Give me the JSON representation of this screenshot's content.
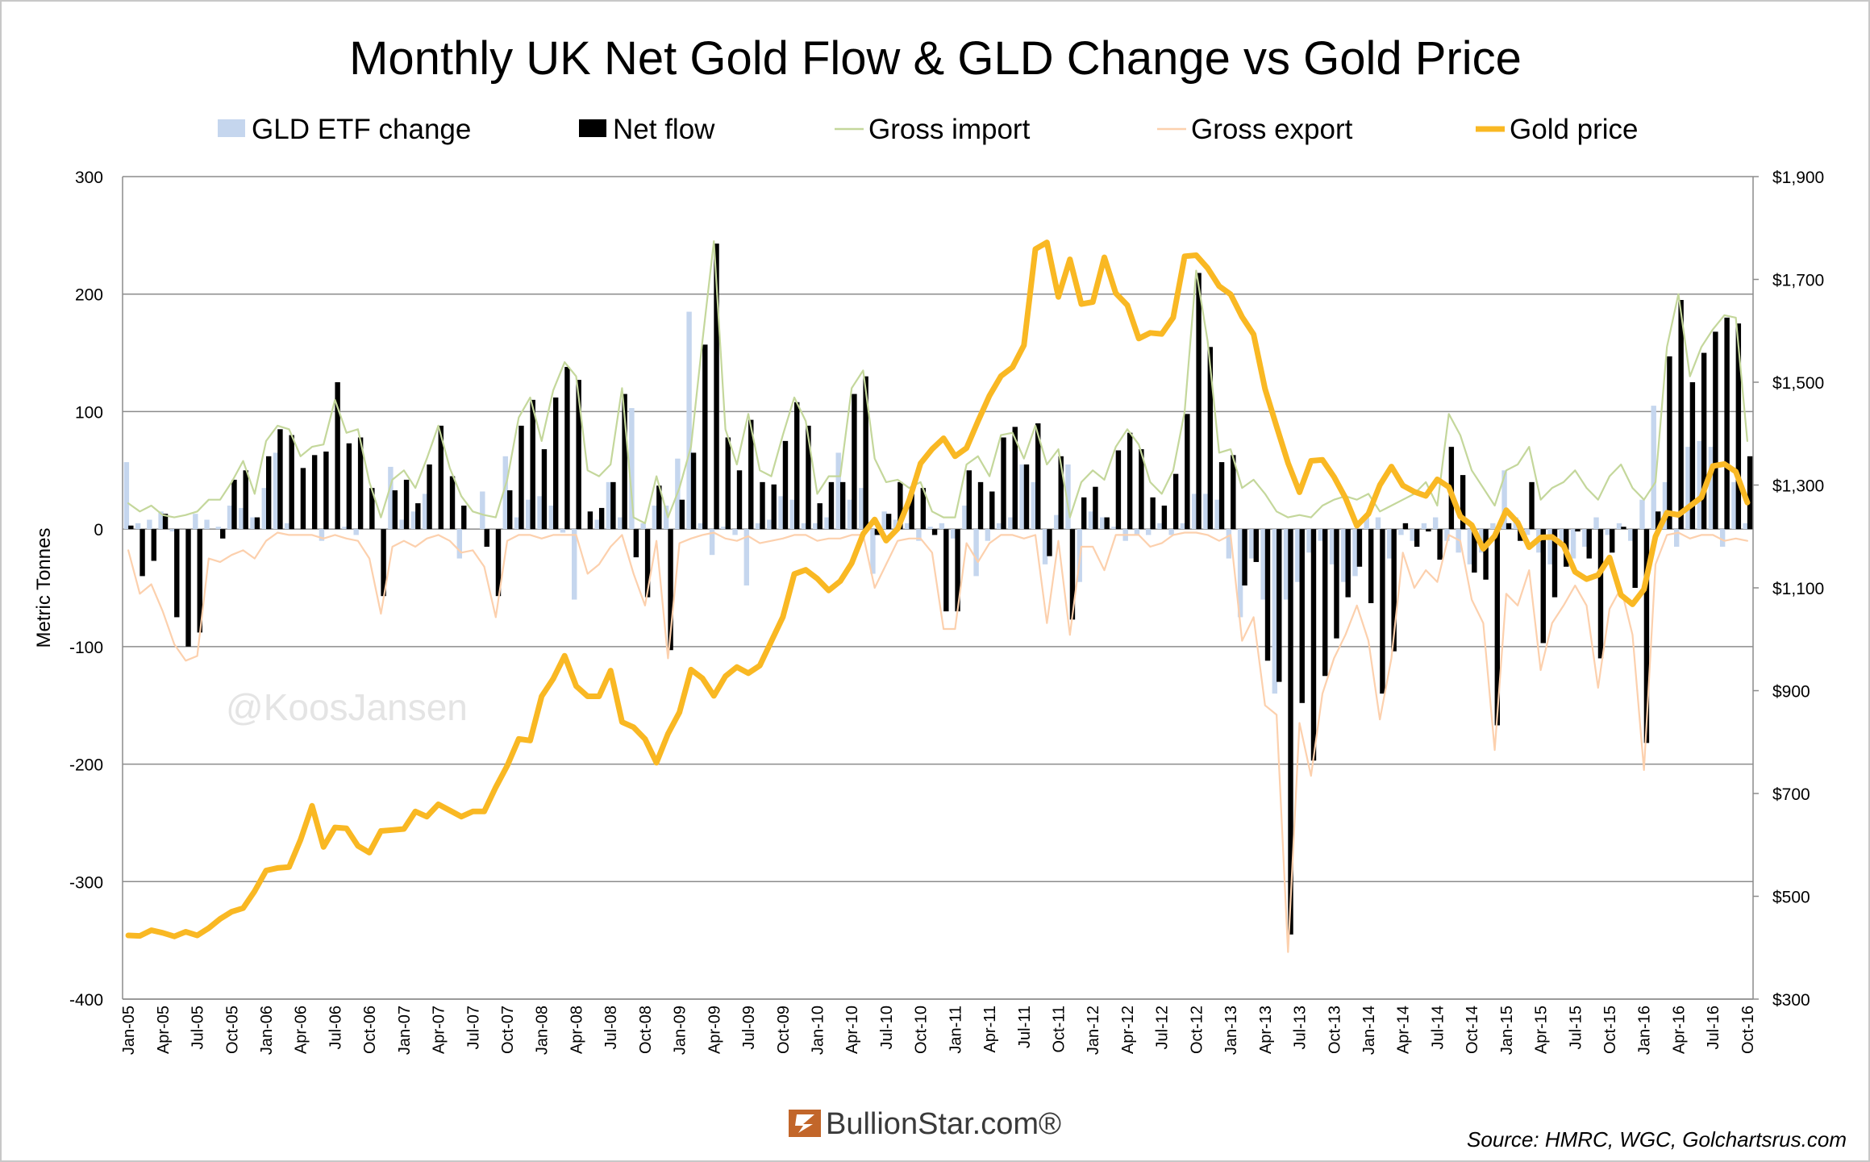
{
  "chart_data": {
    "type": "bar",
    "title": "Monthly UK Net Gold Flow & GLD Change vs Gold Price",
    "y_label": "Metric Tonnes",
    "watermark": "@KoosJansen",
    "logo": "BullionStar.com®",
    "source": "Source: HMRC, WGC, Golchartsrus.com",
    "categories": [
      "Jan-05",
      null,
      null,
      "Apr-05",
      null,
      null,
      "Jul-05",
      null,
      null,
      "Oct-05",
      null,
      null,
      "Jan-06",
      null,
      null,
      "Apr-06",
      null,
      null,
      "Jul-06",
      null,
      null,
      "Oct-06",
      null,
      null,
      "Jan-07",
      null,
      null,
      "Apr-07",
      null,
      null,
      "Jul-07",
      null,
      null,
      "Oct-07",
      null,
      null,
      "Jan-08",
      null,
      null,
      "Apr-08",
      null,
      null,
      "Jul-08",
      null,
      null,
      "Oct-08",
      null,
      null,
      "Jan-09",
      null,
      null,
      "Apr-09",
      null,
      null,
      "Jul-09",
      null,
      null,
      "Oct-09",
      null,
      null,
      "Jan-10",
      null,
      null,
      "Apr-10",
      null,
      null,
      "Jul-10",
      null,
      null,
      "Oct-10",
      null,
      null,
      "Jan-11",
      null,
      null,
      "Apr-11",
      null,
      null,
      "Jul-11",
      null,
      null,
      "Oct-11",
      null,
      null,
      "Jan-12",
      null,
      null,
      "Apr-12",
      null,
      null,
      "Jul-12",
      null,
      null,
      "Oct-12",
      null,
      null,
      "Jan-13",
      null,
      null,
      "Apr-13",
      null,
      null,
      "Jul-13",
      null,
      null,
      "Oct-13",
      null,
      null,
      "Jan-14",
      null,
      null,
      "Apr-14",
      null,
      null,
      "Jul-14",
      null,
      null,
      "Oct-14",
      null,
      null,
      "Jan-15",
      null,
      null,
      "Apr-15",
      null,
      null,
      "Jul-15",
      null,
      null,
      "Oct-15",
      null,
      null,
      "Jan-16",
      null,
      null,
      "Apr-16",
      null,
      null,
      "Jul-16",
      null,
      null,
      "Oct-16"
    ],
    "ylim": [
      -400,
      300
    ],
    "yticks": [
      -400,
      -300,
      -200,
      -100,
      0,
      100,
      200,
      300
    ],
    "y2lim": [
      300,
      1900
    ],
    "y2ticks": [
      {
        "value": 300,
        "label": "$300"
      },
      {
        "value": 500,
        "label": "$500"
      },
      {
        "value": 700,
        "label": "$700"
      },
      {
        "value": 900,
        "label": "$900"
      },
      {
        "value": 1100,
        "label": "$1,100"
      },
      {
        "value": 1300,
        "label": "$1,300"
      },
      {
        "value": 1500,
        "label": "$1,500"
      },
      {
        "value": 1700,
        "label": "$1,700"
      },
      {
        "value": 1900,
        "label": "$1,900"
      }
    ],
    "grid": true,
    "series": [
      {
        "name": "GLD ETF change",
        "type": "bar",
        "color": "#c5d6ee",
        "values": [
          57,
          5,
          8,
          15,
          -2,
          0,
          13,
          8,
          2,
          20,
          18,
          10,
          35,
          65,
          5,
          0,
          0,
          -10,
          0,
          2,
          -5,
          0,
          0,
          53,
          8,
          15,
          30,
          0,
          0,
          -25,
          0,
          32,
          0,
          62,
          10,
          25,
          28,
          20,
          -3,
          -60,
          0,
          8,
          40,
          10,
          103,
          5,
          20,
          20,
          60,
          185,
          5,
          -22,
          2,
          -5,
          -48,
          5,
          8,
          28,
          25,
          5,
          5,
          10,
          65,
          25,
          35,
          -38,
          15,
          8,
          5,
          -10,
          2,
          5,
          -8,
          20,
          -40,
          -10,
          5,
          10,
          55,
          40,
          -30,
          12,
          55,
          -45,
          15,
          10,
          2,
          -10,
          -5,
          -5,
          5,
          -5,
          5,
          30,
          30,
          25,
          -25,
          -75,
          -25,
          -60,
          -140,
          -60,
          -45,
          -20,
          -10,
          -30,
          -45,
          -40,
          10,
          10,
          -25,
          -5,
          -10,
          5,
          10,
          -10,
          -20,
          -30,
          -20,
          5,
          50,
          10,
          -5,
          -20,
          -30,
          -10,
          -25,
          -15,
          10,
          -5,
          5,
          -10,
          25,
          105,
          40,
          -15,
          70,
          75,
          70,
          -15,
          40,
          5
        ]
      },
      {
        "name": "Net flow",
        "type": "bar",
        "color": "#000000",
        "values": [
          3,
          -40,
          -27,
          13,
          -75,
          -100,
          -88,
          0,
          -8,
          42,
          50,
          10,
          62,
          85,
          80,
          52,
          63,
          66,
          125,
          73,
          78,
          35,
          -57,
          33,
          42,
          22,
          55,
          88,
          45,
          20,
          0,
          -15,
          -57,
          33,
          88,
          110,
          68,
          112,
          138,
          127,
          15,
          18,
          40,
          115,
          -24,
          -58,
          37,
          -103,
          25,
          65,
          157,
          243,
          78,
          50,
          93,
          40,
          38,
          75,
          108,
          88,
          22,
          40,
          40,
          115,
          130,
          -5,
          13,
          40,
          30,
          35,
          -5,
          -70,
          -70,
          50,
          40,
          32,
          78,
          87,
          55,
          90,
          -23,
          62,
          -77,
          27,
          36,
          10,
          67,
          82,
          68,
          27,
          20,
          47,
          98,
          218,
          155,
          57,
          63,
          -48,
          -28,
          -112,
          -130,
          -345,
          -148,
          -197,
          -125,
          -93,
          -58,
          -32,
          -63,
          -140,
          -104,
          5,
          -15,
          -2,
          -26,
          70,
          46,
          -37,
          -43,
          -167,
          5,
          -10,
          40,
          -97,
          -58,
          -32,
          -2,
          -25,
          -110,
          -20,
          2,
          -50,
          -182,
          15,
          147,
          195,
          125,
          150,
          168,
          180,
          175,
          62
        ]
      },
      {
        "name": "Gross import",
        "type": "line",
        "color": "#c4d79b",
        "values": [
          22,
          15,
          20,
          12,
          10,
          12,
          15,
          25,
          25,
          40,
          58,
          30,
          75,
          88,
          85,
          62,
          70,
          72,
          110,
          82,
          85,
          40,
          10,
          42,
          50,
          35,
          60,
          88,
          52,
          28,
          15,
          12,
          10,
          42,
          95,
          112,
          75,
          118,
          142,
          130,
          50,
          45,
          55,
          120,
          10,
          5,
          45,
          10,
          35,
          70,
          160,
          245,
          85,
          55,
          98,
          50,
          45,
          80,
          112,
          92,
          30,
          45,
          45,
          120,
          135,
          60,
          40,
          42,
          35,
          40,
          15,
          10,
          10,
          55,
          62,
          45,
          80,
          82,
          60,
          88,
          55,
          68,
          10,
          40,
          50,
          42,
          70,
          85,
          72,
          40,
          30,
          50,
          100,
          220,
          160,
          65,
          68,
          35,
          42,
          30,
          15,
          10,
          12,
          10,
          20,
          25,
          28,
          25,
          30,
          15,
          20,
          25,
          30,
          40,
          20,
          98,
          80,
          50,
          35,
          20,
          50,
          55,
          70,
          25,
          35,
          40,
          50,
          35,
          25,
          45,
          55,
          35,
          25,
          40,
          155,
          200,
          130,
          155,
          170,
          182,
          180,
          75
        ]
      },
      {
        "name": "Gross export",
        "type": "line",
        "color": "#fcd0ad",
        "values": [
          -18,
          -55,
          -47,
          -70,
          -98,
          -112,
          -108,
          -25,
          -28,
          -22,
          -18,
          -25,
          -10,
          -3,
          -5,
          -5,
          -5,
          -8,
          -5,
          -8,
          -10,
          -25,
          -72,
          -15,
          -10,
          -15,
          -8,
          -5,
          -10,
          -20,
          -18,
          -32,
          -75,
          -10,
          -5,
          -5,
          -8,
          -5,
          -5,
          -5,
          -38,
          -30,
          -15,
          -5,
          -38,
          -65,
          -10,
          -110,
          -12,
          -8,
          -5,
          -3,
          -8,
          -10,
          -6,
          -12,
          -10,
          -8,
          -5,
          -5,
          -10,
          -8,
          -8,
          -5,
          -5,
          -50,
          -30,
          -10,
          -8,
          -8,
          -20,
          -85,
          -85,
          -12,
          -28,
          -12,
          -5,
          -5,
          -8,
          -5,
          -80,
          -10,
          -90,
          -15,
          -15,
          -35,
          -5,
          -5,
          -5,
          -15,
          -12,
          -5,
          -3,
          -3,
          -5,
          -10,
          -5,
          -95,
          -75,
          -150,
          -158,
          -360,
          -165,
          -210,
          -140,
          -110,
          -90,
          -65,
          -95,
          -162,
          -110,
          -20,
          -50,
          -35,
          -45,
          -5,
          -10,
          -60,
          -80,
          -188,
          -55,
          -65,
          -35,
          -120,
          -80,
          -65,
          -48,
          -65,
          -135,
          -68,
          -50,
          -90,
          -205,
          -30,
          -5,
          -3,
          -8,
          -5,
          -5,
          -10,
          -8,
          -10
        ]
      },
      {
        "name": "Gold price",
        "type": "line",
        "axis": "y2",
        "color": "#f9b823",
        "values": [
          424,
          423,
          434,
          429,
          422,
          431,
          424,
          438,
          456,
          470,
          477,
          510,
          550,
          555,
          557,
          610,
          676,
          596,
          634,
          632,
          598,
          585,
          627,
          629,
          631,
          665,
          655,
          679,
          667,
          655,
          665,
          665,
          712,
          754,
          806,
          803,
          889,
          923,
          968,
          909,
          889,
          889,
          939,
          839,
          829,
          806,
          760,
          816,
          858,
          941,
          924,
          890,
          928,
          946,
          934,
          949,
          996,
          1043,
          1127,
          1135,
          1118,
          1095,
          1113,
          1148,
          1205,
          1233,
          1192,
          1215,
          1270,
          1342,
          1370,
          1391,
          1356,
          1372,
          1424,
          1474,
          1512,
          1529,
          1572,
          1759,
          1772,
          1666,
          1739,
          1652,
          1656,
          1743,
          1673,
          1650,
          1585,
          1596,
          1594,
          1626,
          1745,
          1747,
          1722,
          1687,
          1671,
          1627,
          1593,
          1487,
          1414,
          1343,
          1286,
          1347,
          1349,
          1316,
          1275,
          1221,
          1244,
          1300,
          1336,
          1299,
          1287,
          1279,
          1311,
          1296,
          1239,
          1222,
          1176,
          1201,
          1251,
          1227,
          1179,
          1198,
          1199,
          1182,
          1131,
          1117,
          1125,
          1159,
          1086,
          1068,
          1097,
          1200,
          1246,
          1242,
          1259,
          1276,
          1337,
          1341,
          1326,
          1266
        ]
      }
    ]
  }
}
